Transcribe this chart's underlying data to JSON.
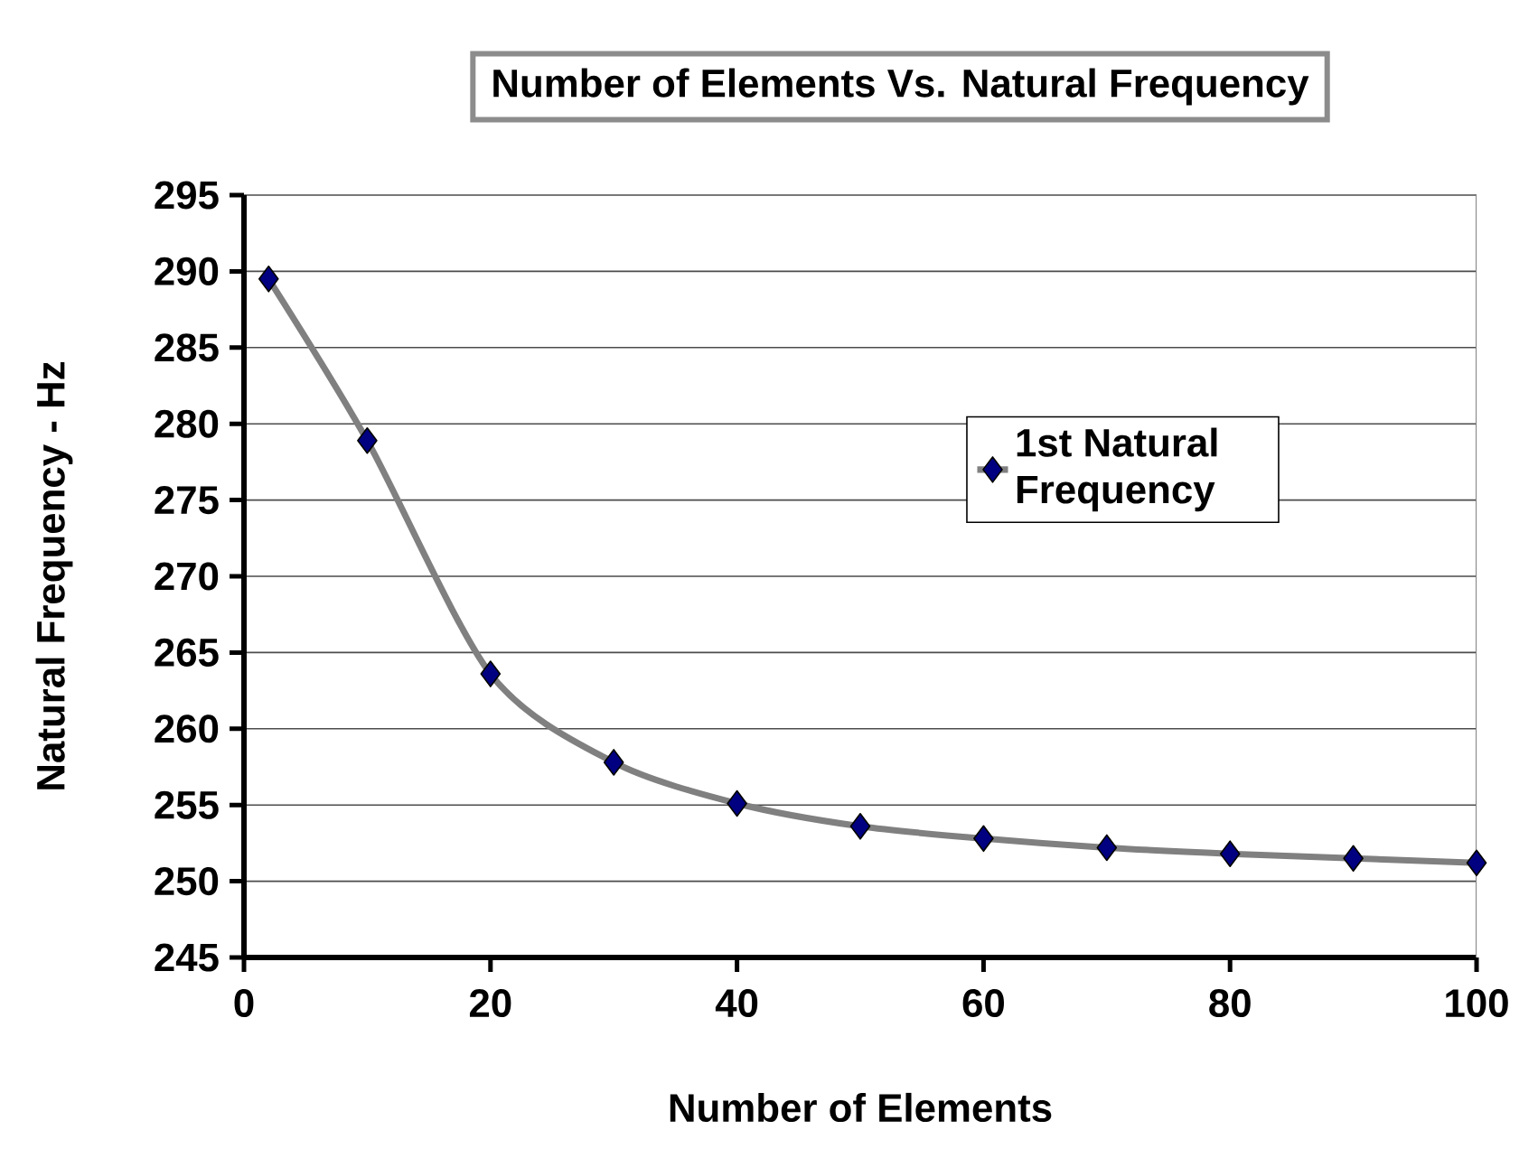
{
  "chart_data": {
    "type": "line",
    "title": "Number of Elements Vs. Natural Frequency",
    "xlabel": "Number of Elements",
    "ylabel": "Natural Frequency - Hz",
    "x": [
      2,
      10,
      20,
      30,
      40,
      50,
      60,
      70,
      80,
      90,
      100
    ],
    "series": [
      {
        "name": "1st Natural Frequency",
        "color": "#808080",
        "values": [
          289.5,
          278.9,
          263.6,
          257.8,
          255.1,
          253.6,
          252.8,
          252.2,
          251.8,
          251.5,
          251.2
        ]
      }
    ],
    "xlim": [
      0,
      100
    ],
    "xticks": [
      0,
      20,
      40,
      60,
      80,
      100
    ],
    "ylim": [
      245,
      295
    ],
    "yticks": [
      245,
      250,
      255,
      260,
      265,
      270,
      275,
      280,
      285,
      290,
      295
    ],
    "grid": "y",
    "legend": "right",
    "marker": "diamond",
    "line_style": "solid"
  }
}
